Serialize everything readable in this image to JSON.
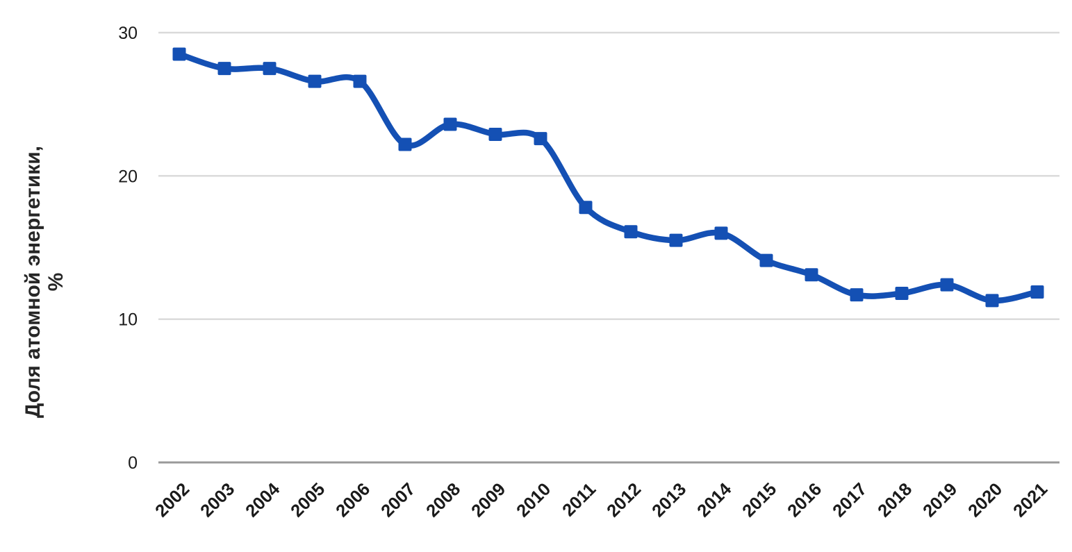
{
  "chart_data": {
    "type": "line",
    "title": "",
    "xlabel": "",
    "ylabel": "Доля атомной энергетики, %",
    "ylabel_lines": [
      "Доля атомной энергетики,",
      "%"
    ],
    "categories": [
      "2002",
      "2003",
      "2004",
      "2005",
      "2006",
      "2007",
      "2008",
      "2009",
      "2010",
      "2011",
      "2012",
      "2013",
      "2014",
      "2015",
      "2016",
      "2017",
      "2018",
      "2019",
      "2020",
      "2021"
    ],
    "series": [
      {
        "name": "Доля атомной энергетики, %",
        "values": [
          28.5,
          27.5,
          27.5,
          26.6,
          26.6,
          22.2,
          23.6,
          22.9,
          22.6,
          17.8,
          16.1,
          15.5,
          16.0,
          14.1,
          13.1,
          11.7,
          11.8,
          12.4,
          11.3,
          11.9
        ],
        "marker": "square",
        "smooth": true
      }
    ],
    "ylim": [
      0,
      30
    ],
    "yticks": [
      0,
      10,
      20,
      30
    ],
    "grid": "horizontal",
    "legend": "none",
    "colors": {
      "line": "#1450b4",
      "marker": "#1450b4",
      "gridline": "#d9d9d9",
      "axis_line": "#9a9a9a",
      "tick_text": "#1a1a1a",
      "axis_title_text": "#262626"
    }
  }
}
